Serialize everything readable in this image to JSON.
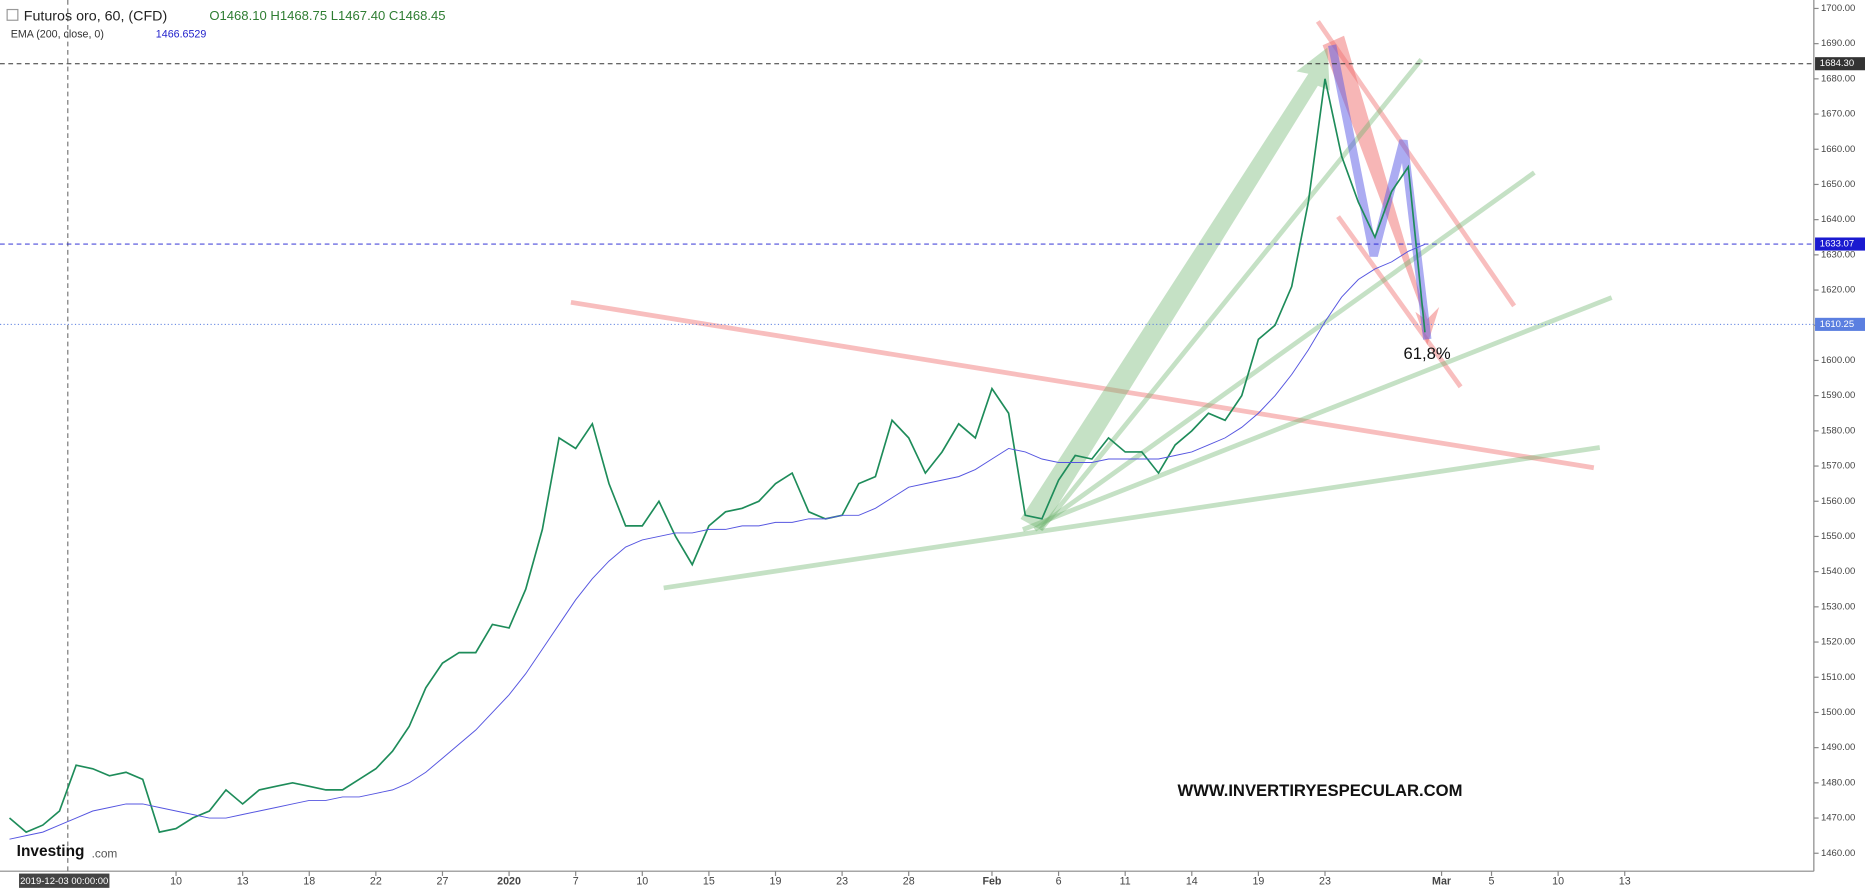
{
  "chart_data": {
    "type": "line",
    "title": "Futuros oro, 60, (CFD)",
    "ohlc": "O1468.10 H1468.75 L1467.40 C1468.45",
    "indicator": "EMA (200, close, 0)",
    "indicator_value": "1466.6529",
    "crosshair_date": "2019-12-03 00:00:00",
    "annotations": [
      "61,8%",
      "WWW.INVERTIRYESPECULAR.COM"
    ],
    "logo": "Investing",
    "logo_suffix": ".com",
    "categories": [
      null,
      null,
      null,
      null,
      null,
      null,
      null,
      null,
      null,
      null,
      "10",
      null,
      null,
      null,
      "13",
      null,
      null,
      null,
      "18",
      null,
      null,
      null,
      "22",
      null,
      null,
      null,
      "27",
      null,
      null,
      null,
      "2020",
      null,
      null,
      null,
      "7",
      null,
      null,
      null,
      "10",
      null,
      null,
      null,
      "15",
      null,
      null,
      null,
      "19",
      null,
      null,
      null,
      "23",
      null,
      null,
      null,
      "28",
      null,
      null,
      null,
      null,
      "Feb",
      null,
      null,
      null,
      "6",
      null,
      null,
      null,
      "11",
      null,
      null,
      null,
      "14",
      null,
      null,
      null,
      "19",
      null,
      null,
      null,
      "23",
      null,
      null,
      null,
      null,
      null,
      null,
      "Mar",
      null,
      null,
      "5",
      null,
      null,
      null,
      "10",
      null,
      null,
      null,
      "13",
      null,
      null,
      null,
      null,
      null,
      null,
      null,
      null,
      null,
      null,
      null
    ],
    "series": [
      {
        "name": "Futuros oro",
        "color": "#1e8c5a",
        "values": [
          1470,
          1466,
          1468,
          1472,
          1485,
          1484,
          1482,
          1483,
          1481,
          1466,
          1467,
          1470,
          1472,
          1478,
          1474,
          1478,
          1479,
          1480,
          1479,
          1478,
          1478,
          1481,
          1484,
          1489,
          1496,
          1507,
          1514,
          1517,
          1517,
          1525,
          1524,
          1535,
          1552,
          1578,
          1575,
          1582,
          1565,
          1553,
          1553,
          1560,
          1550,
          1542,
          1553,
          1557,
          1558,
          1560,
          1565,
          1568,
          1557,
          1555,
          1556,
          1565,
          1567,
          1583,
          1578,
          1568,
          1574,
          1582,
          1578,
          1592,
          1585,
          1556,
          1555,
          1566,
          1573,
          1572,
          1578,
          1574,
          1574,
          1568,
          1576,
          1580,
          1585,
          1583,
          1590,
          1606,
          1610,
          1621,
          1645,
          1680,
          1658,
          1645,
          1635,
          1648,
          1655,
          1608,
          null,
          null,
          null,
          null,
          null,
          null,
          null,
          null,
          null,
          null,
          null,
          null,
          null,
          null,
          null,
          null,
          null,
          null,
          null,
          null,
          null,
          null,
          null
        ]
      },
      {
        "name": "EMA (200, close, 0)",
        "color": "#5555e0",
        "values": [
          1464,
          1465,
          1466,
          1468,
          1470,
          1472,
          1473,
          1474,
          1474,
          1473,
          1472,
          1471,
          1470,
          1470,
          1471,
          1472,
          1473,
          1474,
          1475,
          1475,
          1476,
          1476,
          1477,
          1478,
          1480,
          1483,
          1487,
          1491,
          1495,
          1500,
          1505,
          1511,
          1518,
          1525,
          1532,
          1538,
          1543,
          1547,
          1549,
          1550,
          1551,
          1551,
          1552,
          1552,
          1553,
          1553,
          1554,
          1554,
          1555,
          1555,
          1556,
          1556,
          1558,
          1561,
          1564,
          1565,
          1566,
          1567,
          1569,
          1572,
          1575,
          1574,
          1572,
          1571,
          1571,
          1571,
          1572,
          1572,
          1572,
          1572,
          1573,
          1574,
          1576,
          1578,
          1581,
          1585,
          1590,
          1596,
          1603,
          1611,
          1618,
          1623,
          1626,
          1628,
          1631,
          1633,
          null,
          null,
          null,
          null,
          null,
          null,
          null,
          null,
          null,
          null,
          null,
          null,
          null,
          null,
          null,
          null,
          null,
          null,
          null,
          null,
          null,
          null,
          null
        ]
      }
    ],
    "price_lines": [
      {
        "value": 1684.3,
        "label": "1684.30",
        "color": "#333333"
      },
      {
        "value": 1633.07,
        "label": "1633.07",
        "color": "#1a1ad0"
      },
      {
        "value": 1610.25,
        "label": "1610.25",
        "color": "#5b7fe0"
      }
    ],
    "ylim": [
      1454.9,
      1702.4
    ],
    "yticks": [
      {
        "value": 1460,
        "label": "1460.00"
      },
      {
        "value": 1470,
        "label": "1470.00"
      },
      {
        "value": 1480,
        "label": "1480.00"
      },
      {
        "value": 1490,
        "label": "1490.00"
      },
      {
        "value": 1500,
        "label": "1500.00"
      },
      {
        "value": 1510,
        "label": "1510.00"
      },
      {
        "value": 1520,
        "label": "1520.00"
      },
      {
        "value": 1530,
        "label": "1530.00"
      },
      {
        "value": 1540,
        "label": "1540.00"
      },
      {
        "value": 1550,
        "label": "1550.00"
      },
      {
        "value": 1560,
        "label": "1560.00"
      },
      {
        "value": 1570,
        "label": "1570.00"
      },
      {
        "value": 1580,
        "label": "1580.00"
      },
      {
        "value": 1590,
        "label": "1590.00"
      },
      {
        "value": 1600,
        "label": "1600.00"
      },
      {
        "value": 1610,
        "label": "1610.00"
      },
      {
        "value": 1620,
        "label": "1620.00"
      },
      {
        "value": 1630,
        "label": "1630.00"
      },
      {
        "value": 1640,
        "label": "1640.00"
      },
      {
        "value": 1650,
        "label": "1650.00"
      },
      {
        "value": 1660,
        "label": "1660.00"
      },
      {
        "value": 1670,
        "label": "1670.00"
      },
      {
        "value": 1680,
        "label": "1680.00"
      },
      {
        "value": 1690,
        "label": "1690.00"
      },
      {
        "value": 1700,
        "label": "1700.00"
      }
    ]
  }
}
